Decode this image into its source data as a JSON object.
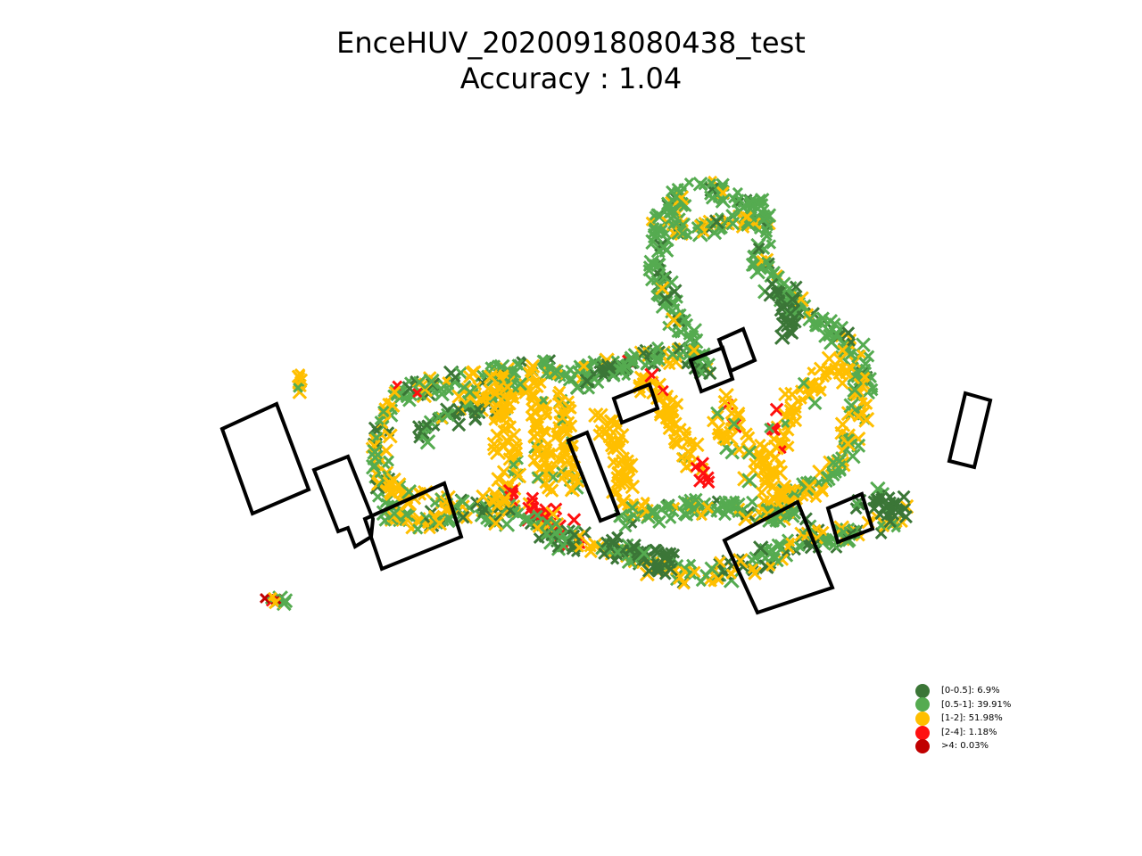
{
  "title": {
    "line1": "EnceHUV_20200918080438_test",
    "line2": "Accuracy : 1.04"
  },
  "legend": [
    {
      "label": "[0-0.5]: 6.9%",
      "color": "#3b7637"
    },
    {
      "label": "[0.5-1]: 39.91%",
      "color": "#55ab50"
    },
    {
      "label": "[1-2]: 51.98%",
      "color": "#ffbf00"
    },
    {
      "label": "[2-4]: 1.18%",
      "color": "#ff1010"
    },
    {
      "label": ">4: 0.03%",
      "color": "#c00000"
    }
  ],
  "chart_data": {
    "type": "scatter",
    "title": "EnceHUV_20200918080438_test\nAccuracy : 1.04",
    "axes_visible": false,
    "grid": false,
    "legend_position": "lower-right",
    "series": [
      {
        "name": "[0-0.5]: 6.9%",
        "share_percent": 6.9,
        "color": "#3b7637"
      },
      {
        "name": "[0.5-1]: 39.91%",
        "share_percent": 39.91,
        "color": "#55ab50"
      },
      {
        "name": "[1-2]: 51.98%",
        "share_percent": 51.98,
        "color": "#ffbf00"
      },
      {
        "name": "[2-4]: 1.18%",
        "share_percent": 1.18,
        "color": "#ff1010"
      },
      {
        "name": ">4: 0.03%",
        "share_percent": 0.03,
        "color": "#c00000"
      }
    ],
    "overall_accuracy": 1.04
  }
}
